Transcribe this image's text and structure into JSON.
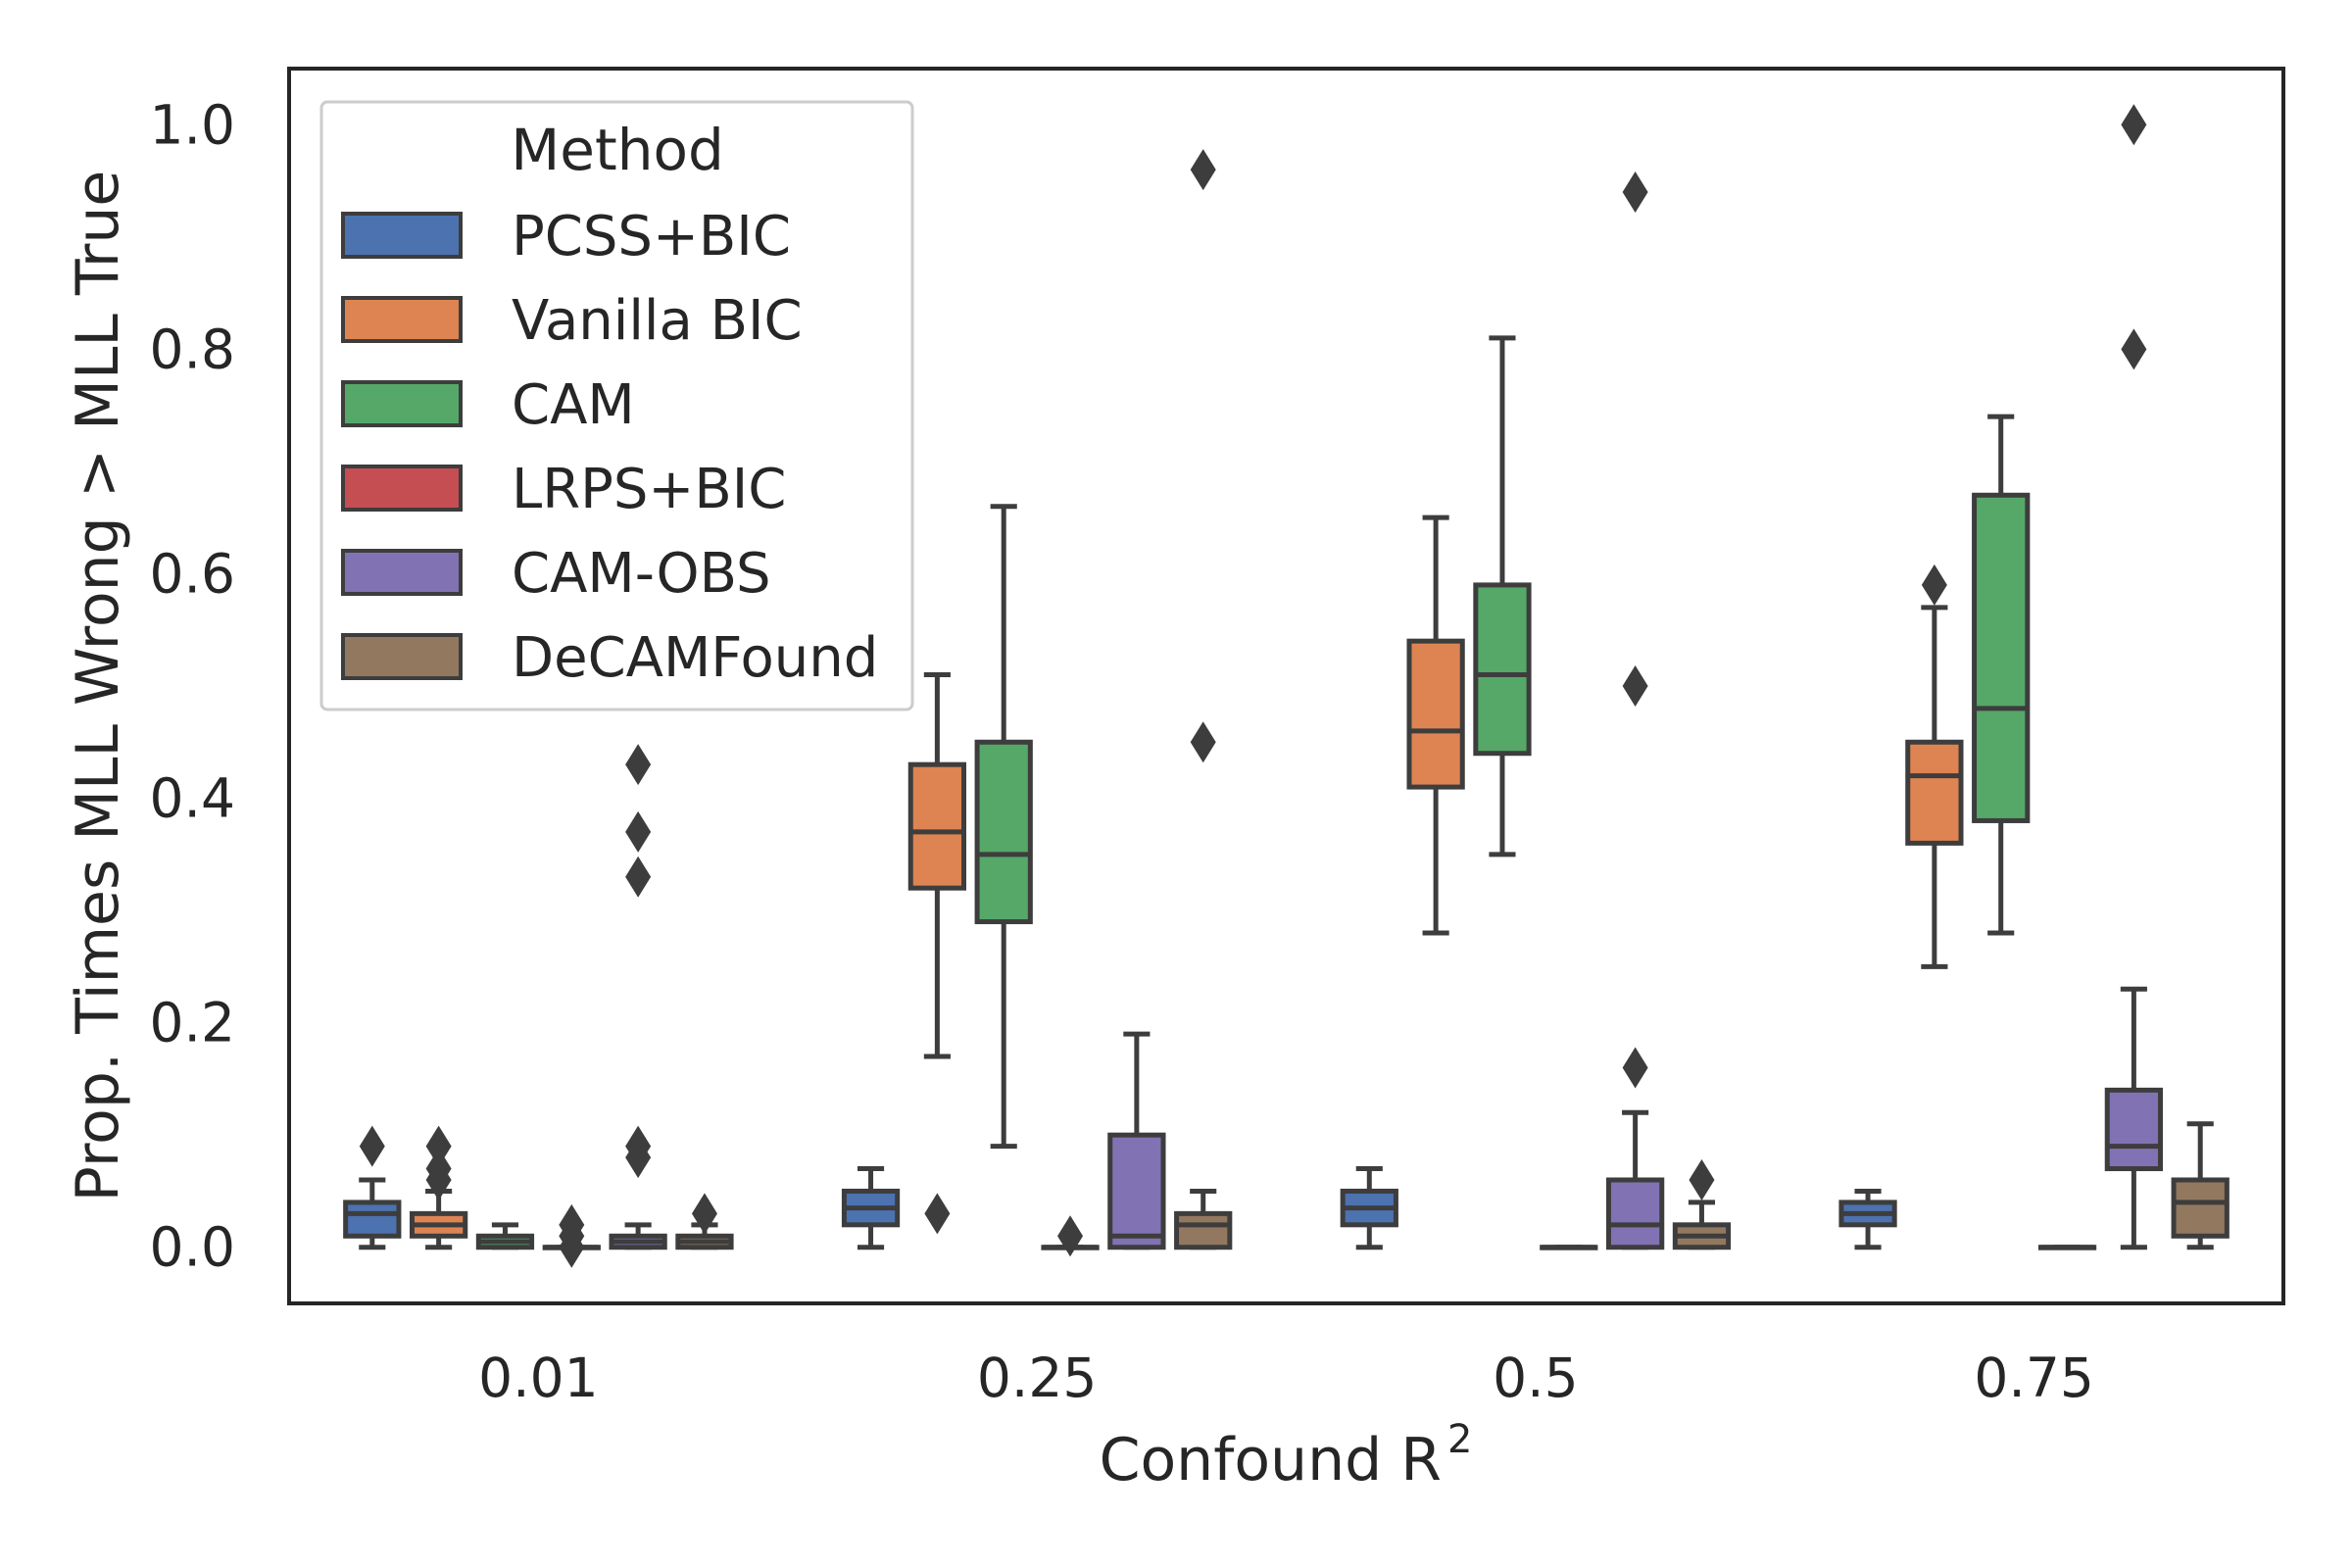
{
  "chart_data": {
    "type": "box",
    "title": "",
    "xlabel": "Confound R",
    "xlabel_sup": "2",
    "ylabel": "Prop. Times MLL Wrong > MLL True",
    "ylim": [
      -0.05,
      1.05
    ],
    "yticks": [
      0.0,
      0.2,
      0.4,
      0.6,
      0.8,
      1.0
    ],
    "ytick_labels": [
      "0.0",
      "0.2",
      "0.4",
      "0.6",
      "0.8",
      "1.0"
    ],
    "categories": [
      "0.01",
      "0.25",
      "0.5",
      "0.75"
    ],
    "legend": {
      "title": "Method",
      "position": "top-left"
    },
    "series": [
      {
        "name": "PCSS+BIC",
        "color": "#4c72b0",
        "boxes": [
          {
            "min": 0.0,
            "q1": 0.01,
            "median": 0.03,
            "q3": 0.04,
            "max": 0.06,
            "outliers": [
              0.09
            ]
          },
          {
            "min": 0.0,
            "q1": 0.02,
            "median": 0.035,
            "q3": 0.05,
            "max": 0.07,
            "outliers": []
          },
          {
            "min": 0.0,
            "q1": 0.02,
            "median": 0.035,
            "q3": 0.05,
            "max": 0.07,
            "outliers": []
          },
          {
            "min": 0.0,
            "q1": 0.02,
            "median": 0.03,
            "q3": 0.04,
            "max": 0.05,
            "outliers": []
          }
        ]
      },
      {
        "name": "Vanilla BIC",
        "color": "#dd8452",
        "boxes": [
          {
            "min": 0.0,
            "q1": 0.01,
            "median": 0.02,
            "q3": 0.03,
            "max": 0.05,
            "outliers": [
              0.06,
              0.07,
              0.09
            ]
          },
          {
            "min": 0.17,
            "q1": 0.32,
            "median": 0.37,
            "q3": 0.43,
            "max": 0.51,
            "outliers": [
              0.03
            ]
          },
          {
            "min": 0.28,
            "q1": 0.41,
            "median": 0.46,
            "q3": 0.54,
            "max": 0.65,
            "outliers": []
          },
          {
            "min": 0.25,
            "q1": 0.36,
            "median": 0.42,
            "q3": 0.45,
            "max": 0.57,
            "outliers": [
              0.59
            ]
          }
        ]
      },
      {
        "name": "CAM",
        "color": "#55a868",
        "boxes": [
          {
            "min": 0.0,
            "q1": 0.0,
            "median": 0.005,
            "q3": 0.01,
            "max": 0.02,
            "outliers": []
          },
          {
            "min": 0.09,
            "q1": 0.29,
            "median": 0.35,
            "q3": 0.45,
            "max": 0.66,
            "outliers": []
          },
          {
            "min": 0.35,
            "q1": 0.44,
            "median": 0.51,
            "q3": 0.59,
            "max": 0.81,
            "outliers": []
          },
          {
            "min": 0.28,
            "q1": 0.38,
            "median": 0.48,
            "q3": 0.67,
            "max": 0.74,
            "outliers": []
          }
        ]
      },
      {
        "name": "LRPS+BIC",
        "color": "#c44e52",
        "boxes": [
          {
            "min": 0.0,
            "q1": 0.0,
            "median": 0.0,
            "q3": 0.0,
            "max": 0.0,
            "outliers": [
              0.0,
              0.01,
              0.02
            ]
          },
          {
            "min": 0.0,
            "q1": 0.0,
            "median": 0.0,
            "q3": 0.0,
            "max": 0.0,
            "outliers": [
              0.01
            ]
          },
          {
            "min": 0.0,
            "q1": 0.0,
            "median": 0.0,
            "q3": 0.0,
            "max": 0.0,
            "outliers": []
          },
          {
            "min": 0.0,
            "q1": 0.0,
            "median": 0.0,
            "q3": 0.0,
            "max": 0.0,
            "outliers": []
          }
        ]
      },
      {
        "name": "CAM-OBS",
        "color": "#8172b3",
        "boxes": [
          {
            "min": 0.0,
            "q1": 0.0,
            "median": 0.005,
            "q3": 0.01,
            "max": 0.02,
            "outliers": [
              0.08,
              0.09,
              0.33,
              0.37,
              0.43
            ]
          },
          {
            "min": 0.0,
            "q1": 0.0,
            "median": 0.01,
            "q3": 0.1,
            "max": 0.19,
            "outliers": []
          },
          {
            "min": 0.0,
            "q1": 0.0,
            "median": 0.02,
            "q3": 0.06,
            "max": 0.12,
            "outliers": [
              0.16,
              0.5,
              0.94
            ]
          },
          {
            "min": 0.0,
            "q1": 0.07,
            "median": 0.09,
            "q3": 0.14,
            "max": 0.23,
            "outliers": [
              0.8,
              1.0
            ]
          }
        ]
      },
      {
        "name": "DeCAMFound",
        "color": "#937860",
        "boxes": [
          {
            "min": 0.0,
            "q1": 0.0,
            "median": 0.005,
            "q3": 0.01,
            "max": 0.02,
            "outliers": [
              0.03
            ]
          },
          {
            "min": 0.0,
            "q1": 0.0,
            "median": 0.02,
            "q3": 0.03,
            "max": 0.05,
            "outliers": [
              0.45,
              0.96
            ]
          },
          {
            "min": 0.0,
            "q1": 0.0,
            "median": 0.01,
            "q3": 0.02,
            "max": 0.04,
            "outliers": [
              0.06
            ]
          },
          {
            "min": 0.0,
            "q1": 0.01,
            "median": 0.04,
            "q3": 0.06,
            "max": 0.11,
            "outliers": []
          }
        ]
      }
    ]
  }
}
